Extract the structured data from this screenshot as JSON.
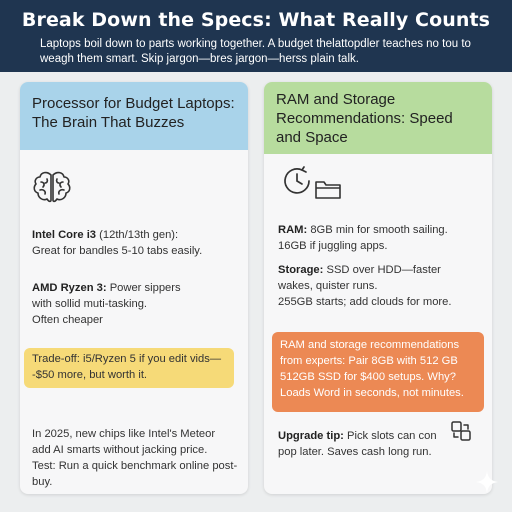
{
  "header": {
    "title": "Break Down the Specs: What Really Counts",
    "subtitle": "Laptops boil down to parts working together. A budget thelattopdler teaches no tou to weagh them smart. Skip jargon—bres jargon—herss plain talk."
  },
  "processor": {
    "heading": "Processor for Budget Laptops: The Brain That Buzzes",
    "icon": "brain-icon",
    "intel_label": "Intel Core i3",
    "intel_gen": " (12th/13th gen):",
    "intel_desc": "Great for bandles 5-10 tabs easily.",
    "amd_label": "AMD Ryzen 3:",
    "amd_desc_1": " Power sippers",
    "amd_desc_2": "with sollid muti-tasking.",
    "amd_desc_3": "Often cheaper",
    "tradeoff": "Trade-off: i5/Ryzen 5 if you edit vids— -$50 more, but worth it.",
    "footer_1": "In 2025, new chips like Intel's Meteor",
    "footer_2": "add AI smarts without jacking price.",
    "footer_3": "Test: Run a quick benchmark online post-buy."
  },
  "ram_storage": {
    "heading": "RAM and Storage Recommendations: Speed and Space",
    "icons": [
      "clock-icon",
      "folder-icon"
    ],
    "ram_label": "RAM:",
    "ram_desc_1": " 8GB min for smooth sailing.",
    "ram_desc_2": "16GB if juggling apps.",
    "storage_label": "Storage:",
    "storage_desc_1": " SSD over HDD—faster",
    "storage_desc_2": "wakes, quister runs.",
    "storage_desc_3": "255GB starts; add clouds for more.",
    "recommendation": "RAM and storage recommendations from experts: Pair 8GB with 512 GB 512GB SSD for $400 setups. Why? Loads Word in seconds, not minutes.",
    "upgrade_label": "Upgrade tip:",
    "upgrade_desc_1": " Pick slots can con",
    "upgrade_desc_2": "pop later. Saves cash long run.",
    "upgrade_icon": "expand-icon"
  },
  "colors": {
    "header_bg": "#1f3550",
    "left_head_bg": "#a9d3ea",
    "right_head_bg": "#b7dc9e",
    "tradeoff_bg": "#f6da78",
    "recommendation_bg": "#ec8954"
  }
}
